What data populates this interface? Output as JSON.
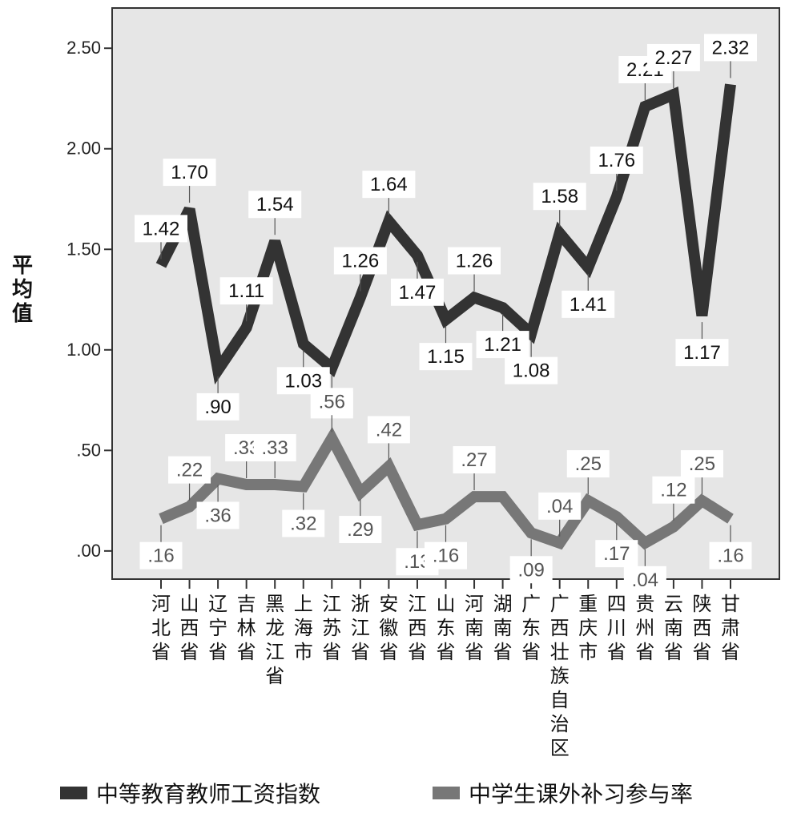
{
  "chart_data": {
    "type": "line",
    "ylabel": "平均值",
    "ylim": [
      -0.14,
      2.7
    ],
    "yticks": [
      0,
      0.5,
      1,
      1.5,
      2,
      2.5
    ],
    "ytick_labels": [
      ".00",
      ".50",
      "1.00",
      "1.50",
      "2.00",
      "2.50"
    ],
    "categories": [
      "河北省",
      "山西省",
      "辽宁省",
      "吉林省",
      "黑龙江省",
      "上海市",
      "江苏省",
      "浙江省",
      "安徽省",
      "江西省",
      "山东省",
      "河南省",
      "湖南省",
      "广东省",
      "广西壮族自治区",
      "重庆市",
      "四川省",
      "贵州省",
      "云南省",
      "陕西省",
      "甘肃省"
    ],
    "legend_position": "bottom",
    "grid": false,
    "series": [
      {
        "name": "中等教育教师工资指数",
        "color": "#333333",
        "values": [
          1.42,
          1.7,
          0.9,
          1.11,
          1.54,
          1.03,
          0.91,
          1.26,
          1.64,
          1.47,
          1.15,
          1.26,
          1.21,
          1.08,
          1.58,
          1.41,
          1.76,
          2.21,
          2.27,
          1.17,
          2.32
        ],
        "labels": [
          "1.42",
          "1.70",
          ".90",
          "1.11",
          "1.54",
          "1.03",
          ".91",
          "1.26",
          "1.64",
          "1.47",
          "1.15",
          "1.26",
          "1.21",
          "1.08",
          "1.58",
          "1.41",
          "1.76",
          "2.21",
          "2.27",
          "1.17",
          "2.32"
        ]
      },
      {
        "name": "中学生课外补习参与率",
        "color": "#777777",
        "values": [
          0.16,
          0.22,
          0.36,
          0.33,
          0.33,
          0.32,
          0.56,
          0.29,
          0.42,
          0.13,
          0.16,
          0.27,
          0.27,
          0.09,
          0.04,
          0.25,
          0.17,
          0.04,
          0.12,
          0.25,
          0.16
        ],
        "labels": [
          ".16",
          ".22",
          ".36",
          ".33",
          ".33",
          ".32",
          ".56",
          ".29",
          ".42",
          ".13",
          ".16",
          ".27",
          "",
          ".09",
          ".04",
          ".25",
          ".17",
          ".04",
          ".12",
          ".25",
          ".16"
        ]
      }
    ]
  }
}
